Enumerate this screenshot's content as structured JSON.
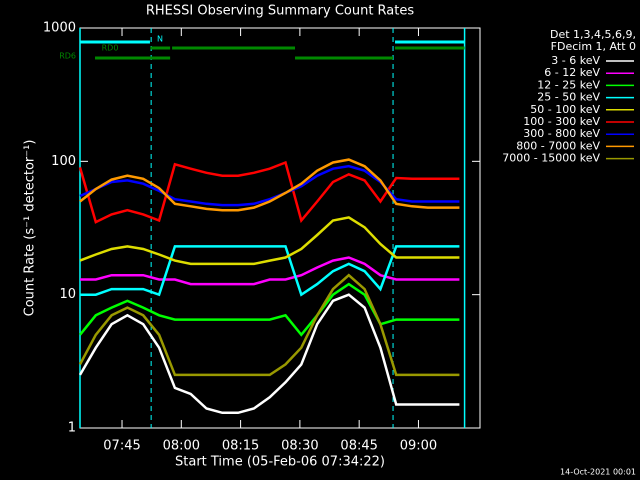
{
  "chart_data": {
    "type": "line",
    "title": "RHESSI Observing Summary Count Rates",
    "xlabel": "Start Time (05-Feb-06 07:34:22)",
    "ylabel": "Count Rate (s⁻¹ detector⁻¹)",
    "info": [
      "Det 1,3,4,5,6,9,",
      "FDecim 1, Att 0"
    ],
    "footer": "14-Oct-2021 00:01",
    "log_y": true,
    "xlim": [
      0,
      101.2
    ],
    "ylim": [
      1,
      1000
    ],
    "xticks": [
      {
        "value": 10.63,
        "label": "07:45"
      },
      {
        "value": 25.63,
        "label": "08:00"
      },
      {
        "value": 40.63,
        "label": "08:15"
      },
      {
        "value": 55.63,
        "label": "08:30"
      },
      {
        "value": 70.63,
        "label": "08:45"
      },
      {
        "value": 85.63,
        "label": "09:00"
      }
    ],
    "yticks": [
      1,
      10,
      100,
      1000
    ],
    "day_edges": [
      0,
      97.3
    ],
    "night_edges": [
      18,
      79.2
    ],
    "flags": [
      {
        "label": "N",
        "color": "#00ffff",
        "spans": [
          [
            0,
            17.7
          ],
          [
            79.7,
            97.3
          ]
        ]
      },
      {
        "label": "RD0",
        "color": "#008800",
        "spans": [
          [
            17.8,
            22.8
          ],
          [
            23.3,
            54.4
          ],
          [
            79.7,
            97.3
          ]
        ]
      },
      {
        "label": "RD6",
        "color": "#008800",
        "spans": [
          [
            3.8,
            22.8
          ],
          [
            54.4,
            79.2
          ]
        ]
      }
    ],
    "x": [
      0,
      4,
      8,
      12,
      16,
      20,
      24,
      28,
      32,
      36,
      40,
      44,
      48,
      52,
      56,
      60,
      64,
      68,
      72,
      76,
      80,
      84,
      88,
      92,
      96
    ],
    "series": [
      {
        "name": "3 - 6 keV",
        "color": "#ffffff",
        "values": [
          2.5,
          4,
          6,
          7,
          6,
          4,
          2,
          1.8,
          1.4,
          1.3,
          1.3,
          1.4,
          1.7,
          2.2,
          3,
          6,
          9,
          10,
          8,
          4,
          1.5,
          1.5,
          1.5,
          1.5,
          1.5
        ]
      },
      {
        "name": "6 - 12 keV",
        "color": "#ff00ff",
        "values": [
          13,
          13,
          14,
          14,
          14,
          13,
          13,
          12,
          12,
          12,
          12,
          12,
          13,
          13,
          14,
          16,
          18,
          19,
          17,
          14,
          13,
          13,
          13,
          13,
          13
        ]
      },
      {
        "name": "12 - 25 keV",
        "color": "#00ff00",
        "values": [
          5,
          7,
          8,
          9,
          8,
          7,
          6.5,
          6.5,
          6.5,
          6.5,
          6.5,
          6.5,
          6.5,
          7,
          5,
          7,
          10,
          12,
          10,
          6,
          6.5,
          6.5,
          6.5,
          6.5,
          6.5
        ]
      },
      {
        "name": "25 - 50 keV",
        "color": "#00ffff",
        "values": [
          10,
          10,
          11,
          11,
          11,
          10,
          23,
          23,
          23,
          23,
          23,
          23,
          23,
          23,
          10,
          12,
          15,
          17,
          15,
          11,
          23,
          23,
          23,
          23,
          23
        ]
      },
      {
        "name": "50 - 100 keV",
        "color": "#dddd00",
        "values": [
          18,
          20,
          22,
          23,
          22,
          20,
          18,
          17,
          17,
          17,
          17,
          17,
          18,
          19,
          22,
          28,
          36,
          38,
          32,
          24,
          19,
          19,
          19,
          19,
          19
        ]
      },
      {
        "name": "100 - 300 keV",
        "color": "#ff0000",
        "values": [
          90,
          35,
          40,
          43,
          40,
          36,
          95,
          88,
          82,
          78,
          78,
          82,
          88,
          98,
          36,
          50,
          70,
          80,
          72,
          50,
          75,
          74,
          74,
          74,
          74
        ]
      },
      {
        "name": "300 - 800 keV",
        "color": "#0000ff",
        "values": [
          55,
          62,
          70,
          72,
          68,
          60,
          52,
          50,
          48,
          47,
          47,
          48,
          52,
          58,
          65,
          78,
          88,
          92,
          85,
          70,
          52,
          50,
          50,
          50,
          50
        ]
      },
      {
        "name": "800 - 7000 keV",
        "color": "#ff9900",
        "values": [
          50,
          62,
          73,
          78,
          74,
          63,
          48,
          46,
          44,
          43,
          43,
          45,
          50,
          58,
          68,
          85,
          98,
          103,
          92,
          72,
          48,
          46,
          45,
          45,
          45
        ]
      },
      {
        "name": "7000 - 15000 keV",
        "color": "#999900",
        "values": [
          3,
          5,
          7,
          8,
          7,
          5,
          2.5,
          2.5,
          2.5,
          2.5,
          2.5,
          2.5,
          2.5,
          3,
          4,
          7,
          11,
          14,
          11,
          6,
          2.5,
          2.5,
          2.5,
          2.5,
          2.5
        ]
      }
    ]
  }
}
